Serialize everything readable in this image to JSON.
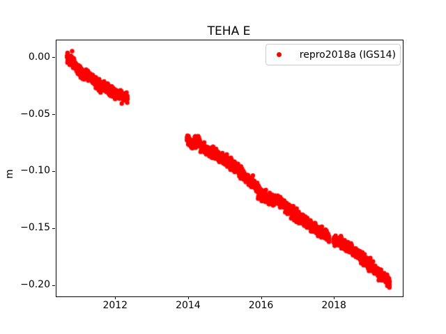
{
  "chart_data": {
    "type": "scatter",
    "title": "TEHA E",
    "xlabel": "",
    "ylabel": "m",
    "xlim": [
      2010.37,
      2019.87
    ],
    "ylim": [
      -0.2094,
      0.0155
    ],
    "grid": false,
    "background": "#ffffff",
    "axis_color": "#000000",
    "xticks": [
      {
        "value": 2012,
        "label": "2012"
      },
      {
        "value": 2014,
        "label": "2014"
      },
      {
        "value": 2016,
        "label": "2016"
      },
      {
        "value": 2018,
        "label": "2018"
      }
    ],
    "yticks": [
      {
        "value": 0.0,
        "label": "0.00"
      },
      {
        "value": -0.05,
        "label": "−0.05"
      },
      {
        "value": -0.1,
        "label": "−0.10"
      },
      {
        "value": -0.15,
        "label": "−0.15"
      },
      {
        "value": -0.2,
        "label": "−0.20"
      }
    ],
    "legend": {
      "position": "upper-right",
      "entries": [
        {
          "label": "repro2018a (IGS14)",
          "marker": "dot",
          "color": "#ff0000"
        }
      ]
    },
    "series": [
      {
        "name": "repro2018a (IGS14)",
        "color": "#ff0000",
        "marker": "dot",
        "points_per_year": 365,
        "noise_sigma_m": 0.0022,
        "segments": [
          {
            "anchors": [
              [
                2010.66,
                0.0
              ],
              [
                2010.72,
                -0.001
              ],
              [
                2010.8,
                -0.004
              ],
              [
                2010.9,
                -0.008
              ],
              [
                2011.0,
                -0.012
              ],
              [
                2011.1,
                -0.014
              ],
              [
                2011.2,
                -0.015
              ],
              [
                2011.3,
                -0.017
              ],
              [
                2011.4,
                -0.02
              ],
              [
                2011.5,
                -0.023
              ],
              [
                2011.6,
                -0.025
              ],
              [
                2011.7,
                -0.026
              ],
              [
                2011.8,
                -0.028
              ],
              [
                2011.9,
                -0.03
              ],
              [
                2012.0,
                -0.031
              ],
              [
                2012.1,
                -0.032
              ],
              [
                2012.2,
                -0.033
              ],
              [
                2012.32,
                -0.036
              ]
            ]
          },
          {
            "anchors": [
              [
                2013.95,
                -0.07
              ],
              [
                2014.02,
                -0.074
              ],
              [
                2014.1,
                -0.077
              ],
              [
                2014.2,
                -0.073
              ],
              [
                2014.3,
                -0.075
              ],
              [
                2014.42,
                -0.08
              ],
              [
                2014.55,
                -0.082
              ],
              [
                2014.7,
                -0.084
              ],
              [
                2014.85,
                -0.087
              ],
              [
                2015.0,
                -0.09
              ],
              [
                2015.15,
                -0.093
              ],
              [
                2015.3,
                -0.096
              ],
              [
                2015.45,
                -0.101
              ],
              [
                2015.6,
                -0.106
              ],
              [
                2015.75,
                -0.11
              ],
              [
                2015.9,
                -0.115
              ],
              [
                2016.0,
                -0.121
              ],
              [
                2016.15,
                -0.124
              ],
              [
                2016.35,
                -0.1245
              ],
              [
                2016.5,
                -0.126
              ],
              [
                2016.65,
                -0.13
              ],
              [
                2016.8,
                -0.134
              ],
              [
                2016.95,
                -0.139
              ],
              [
                2017.1,
                -0.141
              ],
              [
                2017.25,
                -0.145
              ],
              [
                2017.4,
                -0.148
              ],
              [
                2017.55,
                -0.152
              ],
              [
                2017.7,
                -0.155
              ],
              [
                2017.85,
                -0.158
              ]
            ]
          },
          {
            "anchors": [
              [
                2017.97,
                -0.159
              ],
              [
                2018.1,
                -0.161
              ],
              [
                2018.25,
                -0.164
              ],
              [
                2018.4,
                -0.167
              ],
              [
                2018.55,
                -0.17
              ],
              [
                2018.7,
                -0.174
              ],
              [
                2018.85,
                -0.179
              ],
              [
                2019.0,
                -0.183
              ],
              [
                2019.15,
                -0.187
              ],
              [
                2019.3,
                -0.192
              ],
              [
                2019.4,
                -0.194
              ],
              [
                2019.51,
                -0.197
              ]
            ]
          }
        ],
        "outliers": [
          [
            2010.8,
            0.006
          ],
          [
            2015.9,
            -0.1235
          ]
        ]
      }
    ]
  }
}
